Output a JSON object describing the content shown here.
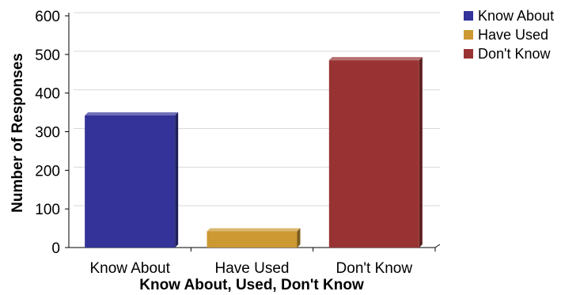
{
  "chart_data": {
    "type": "bar",
    "title": "",
    "xlabel": "Know About, Used, Don't Know",
    "ylabel": "Number of Responses",
    "ylim": [
      0,
      600
    ],
    "yticks": [
      "0",
      "100",
      "200",
      "300",
      "400",
      "500",
      "600"
    ],
    "categories": [
      "Know About",
      "Have Used",
      "Don't Know"
    ],
    "values": [
      342,
      42,
      485
    ],
    "colors": [
      "#333399",
      "#cc9933",
      "#993333"
    ],
    "grid": true,
    "legend_position": "top-right",
    "legend": [
      {
        "label": "Know About",
        "color": "#333399"
      },
      {
        "label": "Have Used",
        "color": "#cc9933"
      },
      {
        "label": "Don't Know",
        "color": "#993333"
      }
    ]
  }
}
